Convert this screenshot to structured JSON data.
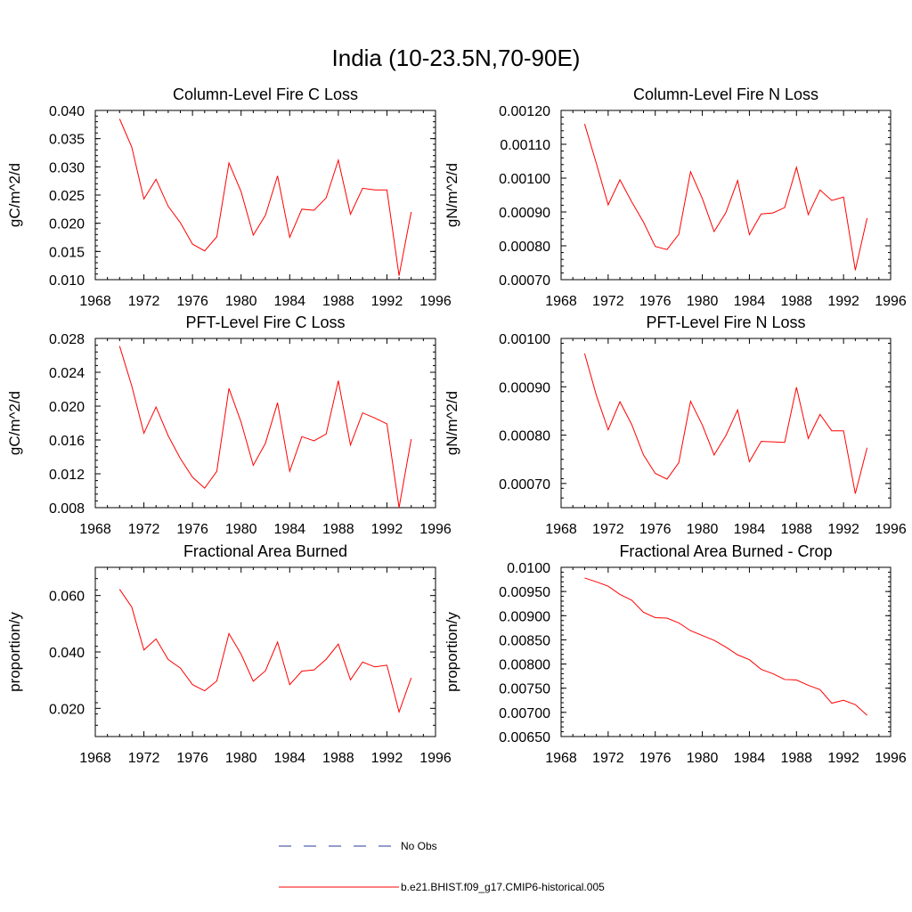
{
  "figure_title": "India (10-23.5N,70-90E)",
  "chart_data": [
    {
      "type": "line",
      "title": "Column-Level Fire C Loss",
      "xlabel": "",
      "ylabel": "gC/m^2/d",
      "xlim": [
        1968,
        1996
      ],
      "ylim": [
        0.01,
        0.04
      ],
      "xticks": [
        1968,
        1972,
        1976,
        1980,
        1984,
        1988,
        1992,
        1996
      ],
      "yticks": [
        "0.010",
        "0.015",
        "0.020",
        "0.025",
        "0.030",
        "0.035",
        "0.040"
      ],
      "series": [
        {
          "name": "b.e21.BHIST.f09_g17.CMIP6-historical.005",
          "color": "#ff0000",
          "x": [
            1970,
            1971,
            1972,
            1973,
            1974,
            1975,
            1976,
            1977,
            1978,
            1979,
            1980,
            1981,
            1982,
            1983,
            1984,
            1985,
            1986,
            1987,
            1988,
            1989,
            1990,
            1991,
            1992,
            1993,
            1994
          ],
          "y": [
            0.0385,
            0.0335,
            0.0243,
            0.0278,
            0.023,
            0.0201,
            0.0163,
            0.0151,
            0.0176,
            0.0307,
            0.0256,
            0.0179,
            0.0214,
            0.0284,
            0.0175,
            0.0225,
            0.0223,
            0.0245,
            0.0312,
            0.0216,
            0.0262,
            0.0259,
            0.0259,
            0.0107,
            0.022
          ]
        }
      ]
    },
    {
      "type": "line",
      "title": "Column-Level Fire N Loss",
      "xlabel": "",
      "ylabel": "gN/m^2/d",
      "xlim": [
        1968,
        1996
      ],
      "ylim": [
        0.0007,
        0.0012
      ],
      "xticks": [
        1968,
        1972,
        1976,
        1980,
        1984,
        1988,
        1992,
        1996
      ],
      "yticks": [
        "0.00070",
        "0.00080",
        "0.00090",
        "0.00100",
        "0.00110",
        "0.00120"
      ],
      "series": [
        {
          "name": "b.e21.BHIST.f09_g17.CMIP6-historical.005",
          "color": "#ff0000",
          "x": [
            1970,
            1971,
            1972,
            1973,
            1974,
            1975,
            1976,
            1977,
            1978,
            1979,
            1980,
            1981,
            1982,
            1983,
            1984,
            1985,
            1986,
            1987,
            1988,
            1989,
            1990,
            1991,
            1992,
            1993,
            1994
          ],
          "y": [
            0.00116,
            0.001043,
            0.000921,
            0.000995,
            0.00093,
            0.00087,
            0.000798,
            0.000789,
            0.000834,
            0.001019,
            0.00094,
            0.000842,
            0.000898,
            0.000993,
            0.000833,
            0.000894,
            0.000897,
            0.000913,
            0.001032,
            0.000892,
            0.000965,
            0.000934,
            0.000944,
            0.000728,
            0.000882
          ]
        }
      ]
    },
    {
      "type": "line",
      "title": "PFT-Level Fire C Loss",
      "xlabel": "",
      "ylabel": "gC/m^2/d",
      "xlim": [
        1968,
        1996
      ],
      "ylim": [
        0.008,
        0.028
      ],
      "xticks": [
        1968,
        1972,
        1976,
        1980,
        1984,
        1988,
        1992,
        1996
      ],
      "yticks": [
        "0.008",
        "0.012",
        "0.016",
        "0.020",
        "0.024",
        "0.028"
      ],
      "series": [
        {
          "name": "b.e21.BHIST.f09_g17.CMIP6-historical.005",
          "color": "#ff0000",
          "x": [
            1970,
            1971,
            1972,
            1973,
            1974,
            1975,
            1976,
            1977,
            1978,
            1979,
            1980,
            1981,
            1982,
            1983,
            1984,
            1985,
            1986,
            1987,
            1988,
            1989,
            1990,
            1991,
            1992,
            1993,
            1994
          ],
          "y": [
            0.0271,
            0.0224,
            0.0168,
            0.0199,
            0.0165,
            0.0138,
            0.0116,
            0.0103,
            0.0123,
            0.0221,
            0.0181,
            0.013,
            0.0156,
            0.0204,
            0.0123,
            0.0164,
            0.0159,
            0.0167,
            0.023,
            0.0154,
            0.0192,
            0.0186,
            0.0179,
            0.008,
            0.0161
          ]
        }
      ]
    },
    {
      "type": "line",
      "title": "PFT-Level Fire N Loss",
      "xlabel": "",
      "ylabel": "gN/m^2/d",
      "xlim": [
        1968,
        1996
      ],
      "ylim": [
        0.00065,
        0.001
      ],
      "xticks": [
        1968,
        1972,
        1976,
        1980,
        1984,
        1988,
        1992,
        1996
      ],
      "yticks": [
        "0.00070",
        "0.00080",
        "0.00090",
        "0.00100"
      ],
      "series": [
        {
          "name": "b.e21.BHIST.f09_g17.CMIP6-historical.005",
          "color": "#ff0000",
          "x": [
            1970,
            1971,
            1972,
            1973,
            1974,
            1975,
            1976,
            1977,
            1978,
            1979,
            1980,
            1981,
            1982,
            1983,
            1984,
            1985,
            1986,
            1987,
            1988,
            1989,
            1990,
            1991,
            1992,
            1993,
            1994
          ],
          "y": [
            0.000969,
            0.000882,
            0.000811,
            0.000869,
            0.000822,
            0.000759,
            0.000721,
            0.000709,
            0.000743,
            0.00087,
            0.000821,
            0.000759,
            0.000799,
            0.000852,
            0.000745,
            0.000787,
            0.000786,
            0.000785,
            0.000899,
            0.000793,
            0.000843,
            0.000809,
            0.000809,
            0.000679,
            0.000774
          ]
        }
      ]
    },
    {
      "type": "line",
      "title": "Fractional Area Burned",
      "xlabel": "",
      "ylabel": "proportion/y",
      "xlim": [
        1968,
        1996
      ],
      "ylim": [
        0.01,
        0.07
      ],
      "xticks": [
        1968,
        1972,
        1976,
        1980,
        1984,
        1988,
        1992,
        1996
      ],
      "yticks": [
        "0.020",
        "0.040",
        "0.060"
      ],
      "series": [
        {
          "name": "b.e21.BHIST.f09_g17.CMIP6-historical.005",
          "color": "#ff0000",
          "x": [
            1970,
            1971,
            1972,
            1973,
            1974,
            1975,
            1976,
            1977,
            1978,
            1979,
            1980,
            1981,
            1982,
            1983,
            1984,
            1985,
            1986,
            1987,
            1988,
            1989,
            1990,
            1991,
            1992,
            1993,
            1994
          ],
          "y": [
            0.0622,
            0.0559,
            0.0407,
            0.0446,
            0.0373,
            0.0343,
            0.0284,
            0.0262,
            0.0297,
            0.0465,
            0.0392,
            0.0296,
            0.0333,
            0.0435,
            0.0284,
            0.0332,
            0.0336,
            0.0374,
            0.0428,
            0.0301,
            0.0364,
            0.0347,
            0.0353,
            0.0187,
            0.0308
          ]
        }
      ]
    },
    {
      "type": "line",
      "title": "Fractional Area Burned - Crop",
      "xlabel": "",
      "ylabel": "proportion/y",
      "xlim": [
        1968,
        1996
      ],
      "ylim": [
        0.0065,
        0.01
      ],
      "xticks": [
        1968,
        1972,
        1976,
        1980,
        1984,
        1988,
        1992,
        1996
      ],
      "yticks": [
        "0.00650",
        "0.00700",
        "0.00750",
        "0.00800",
        "0.00850",
        "0.00900",
        "0.00950",
        "0.0100"
      ],
      "series": [
        {
          "name": "b.e21.BHIST.f09_g17.CMIP6-historical.005",
          "color": "#ff0000",
          "x": [
            1970,
            1971,
            1972,
            1973,
            1974,
            1975,
            1976,
            1977,
            1978,
            1979,
            1980,
            1981,
            1982,
            1983,
            1984,
            1985,
            1986,
            1987,
            1988,
            1989,
            1990,
            1991,
            1992,
            1993,
            1994
          ],
          "y": [
            0.00978,
            0.0097,
            0.00961,
            0.00944,
            0.00932,
            0.00907,
            0.00896,
            0.00895,
            0.00885,
            0.00869,
            0.00859,
            0.00849,
            0.00835,
            0.00819,
            0.00809,
            0.00789,
            0.0078,
            0.00768,
            0.00767,
            0.00756,
            0.00747,
            0.00719,
            0.00725,
            0.00716,
            0.00694
          ]
        }
      ]
    }
  ],
  "legend": {
    "placement": "bottom-center",
    "entries": [
      {
        "label": "No Obs",
        "color": "#2a3a9a",
        "style": "dashed"
      },
      {
        "label": "b.e21.BHIST.f09_g17.CMIP6-historical.005",
        "color": "#ff0000",
        "style": "solid"
      }
    ]
  }
}
